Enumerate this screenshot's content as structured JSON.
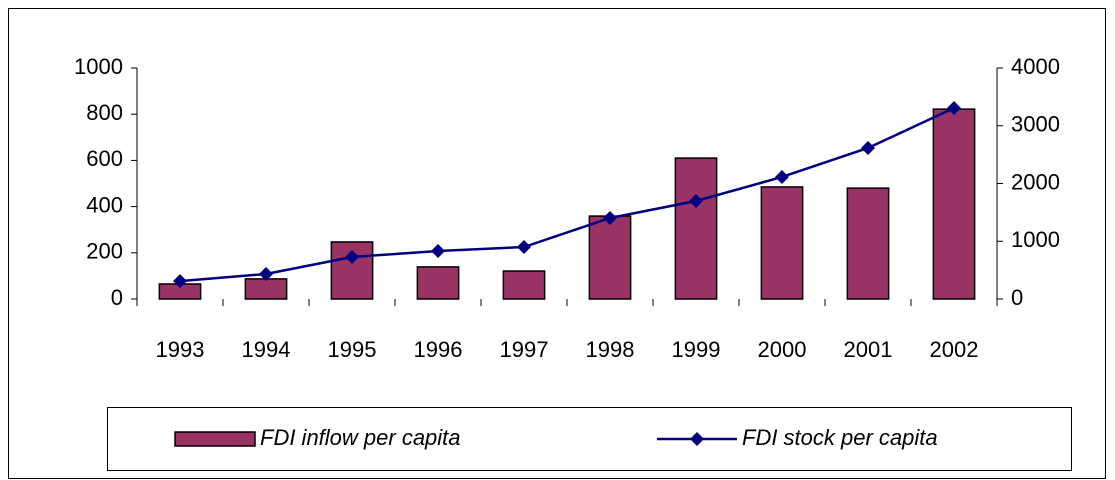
{
  "chart_data": {
    "type": "bar-line",
    "categories": [
      "1993",
      "1994",
      "1995",
      "1996",
      "1997",
      "1998",
      "1999",
      "2000",
      "2001",
      "2002"
    ],
    "series": [
      {
        "name": "FDI inflow per capita",
        "type": "bar",
        "color": "#993366",
        "values": [
          65,
          87,
          247,
          139,
          121,
          359,
          610,
          485,
          480,
          822
        ]
      },
      {
        "name": "FDI stock per capita",
        "type": "line",
        "axis": "y2",
        "color": "#000080",
        "values": [
          310,
          433,
          727,
          831,
          900,
          1403,
          1697,
          2113,
          2615,
          3307
        ]
      }
    ],
    "ylim": [
      0,
      1000
    ],
    "yticks": [
      0,
      200,
      400,
      600,
      800,
      1000
    ],
    "y2lim": [
      0,
      4000
    ],
    "y2ticks": [
      0,
      1000,
      2000,
      3000,
      4000
    ],
    "legend": "bottom"
  }
}
